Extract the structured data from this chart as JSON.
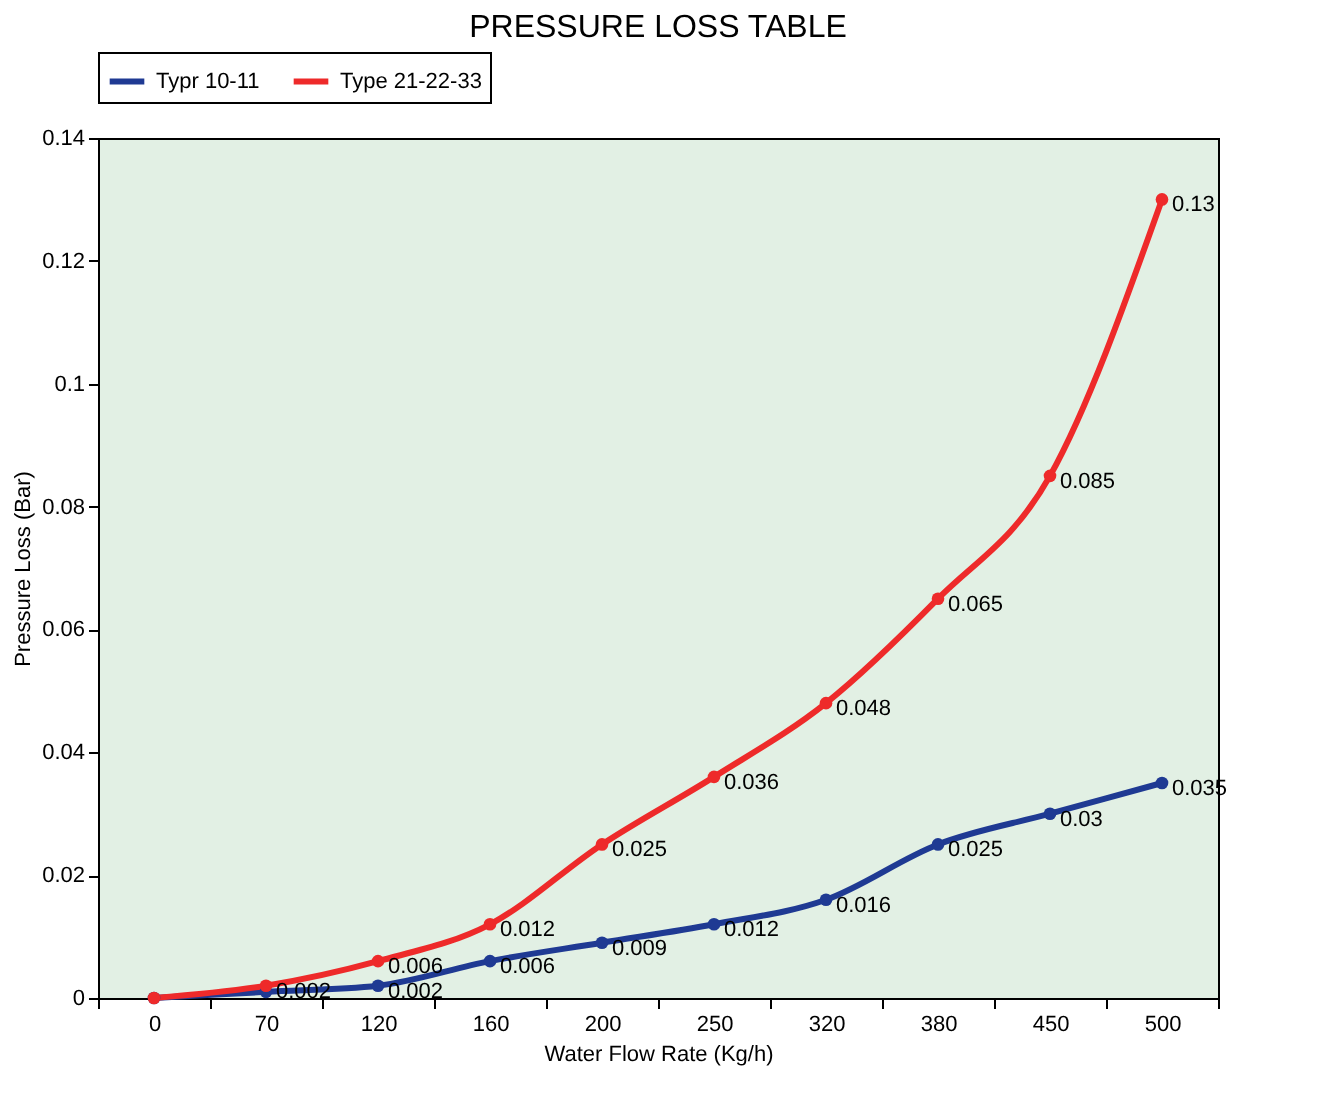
{
  "chart_data": {
    "type": "line",
    "title": "PRESSURE LOSS TABLE",
    "xlabel": "Water Flow Rate (Kg/h)",
    "ylabel": "Pressure Loss (Bar)",
    "categories": [
      "0",
      "70",
      "120",
      "160",
      "200",
      "250",
      "320",
      "380",
      "450",
      "500"
    ],
    "series": [
      {
        "name": "Typr 10-11",
        "color": "#1f3a93",
        "values": [
          0,
          0.001,
          0.002,
          0.006,
          0.009,
          0.012,
          0.016,
          0.025,
          0.03,
          0.035
        ],
        "value_labels": [
          null,
          null,
          "0.002",
          "0.006",
          "0.009",
          "0.012",
          "0.016",
          "0.025",
          "0.03",
          "0.035"
        ]
      },
      {
        "name": "Type 21-22-33",
        "color": "#ee2a2a",
        "values": [
          0,
          0.002,
          0.006,
          0.012,
          0.025,
          0.036,
          0.048,
          0.065,
          0.085,
          0.13
        ],
        "value_labels": [
          null,
          "0.002",
          "0.006",
          "0.012",
          "0.025",
          "0.036",
          "0.048",
          "0.065",
          "0.085",
          "0.13"
        ]
      }
    ],
    "ylim": [
      0,
      0.14
    ],
    "yticks": [
      0,
      0.02,
      0.04,
      0.06,
      0.08,
      0.1,
      0.12,
      0.14
    ],
    "grid": false,
    "legend": "top",
    "marker": "circle",
    "line_style": "solid"
  }
}
